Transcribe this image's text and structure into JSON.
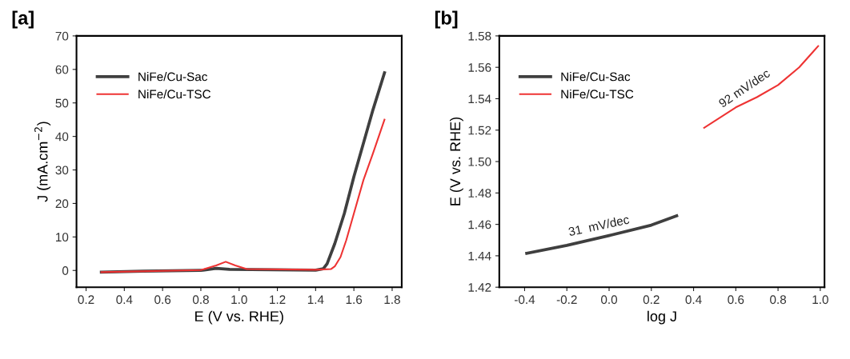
{
  "chart_data": [
    {
      "type": "line",
      "title": "[a]",
      "xlabel": "E (V vs. RHE)",
      "ylabel": "J (mA.cm$^{−2}$)",
      "xlim": [
        0.15,
        1.85
      ],
      "ylim": [
        -5,
        70
      ],
      "xticks": [
        {
          "value": 0.2,
          "label": "0.2"
        },
        {
          "value": 0.4,
          "label": "0.4"
        },
        {
          "value": 0.6,
          "label": "0.6"
        },
        {
          "value": 0.8,
          "label": "0.8"
        },
        {
          "value": 1.0,
          "label": "1.0"
        },
        {
          "value": 1.2,
          "label": "1.2"
        },
        {
          "value": 1.4,
          "label": "1.4"
        },
        {
          "value": 1.6,
          "label": "1.6"
        },
        {
          "value": 1.8,
          "label": "1.8"
        }
      ],
      "yticks": [
        0,
        10,
        20,
        30,
        40,
        50,
        60,
        70
      ],
      "legend": "top left",
      "grid": false,
      "series": [
        {
          "name": "NiFe/Cu-Sac",
          "color": "#3f3f3f",
          "x": [
            0.28,
            0.5,
            0.8,
            0.88,
            0.95,
            1.4,
            1.44,
            1.46,
            1.5,
            1.55,
            1.6,
            1.65,
            1.7,
            1.76
          ],
          "values": [
            -0.5,
            -0.2,
            0,
            0.6,
            0.3,
            0.1,
            0.5,
            2,
            8,
            17,
            28,
            38,
            48,
            59
          ]
        },
        {
          "name": "NiFe/Cu-TSC",
          "color": "#ee3333",
          "x": [
            0.28,
            0.8,
            0.88,
            0.93,
            0.98,
            1.04,
            1.4,
            1.48,
            1.5,
            1.53,
            1.56,
            1.6,
            1.65,
            1.7,
            1.76
          ],
          "values": [
            -0.5,
            0.1,
            1.5,
            2.6,
            1.5,
            0.4,
            0.2,
            0.4,
            1.2,
            4,
            9,
            17,
            27,
            35,
            45
          ]
        }
      ]
    },
    {
      "type": "line",
      "title": "[b]",
      "xlabel": "log J",
      "ylabel": "E (V vs. RHE)",
      "xlim": [
        -0.52,
        1.02
      ],
      "ylim": [
        1.42,
        1.58
      ],
      "xticks": [
        {
          "value": -0.4,
          "label": "-0.4"
        },
        {
          "value": -0.2,
          "label": "-0.2"
        },
        {
          "value": 0.0,
          "label": "0.0"
        },
        {
          "value": 0.2,
          "label": "0.2"
        },
        {
          "value": 0.4,
          "label": "0.4"
        },
        {
          "value": 0.6,
          "label": "0.6"
        },
        {
          "value": 0.8,
          "label": "0.8"
        },
        {
          "value": 1.0,
          "label": "1.0"
        }
      ],
      "yticks": [
        {
          "value": 1.42,
          "label": "1.42"
        },
        {
          "value": 1.44,
          "label": "1.44"
        },
        {
          "value": 1.46,
          "label": "1.46"
        },
        {
          "value": 1.48,
          "label": "1.48"
        },
        {
          "value": 1.5,
          "label": "1.50"
        },
        {
          "value": 1.52,
          "label": "1.52"
        },
        {
          "value": 1.54,
          "label": "1.54"
        },
        {
          "value": 1.56,
          "label": "1.56"
        },
        {
          "value": 1.58,
          "label": "1.58"
        }
      ],
      "legend": "top left",
      "grid": false,
      "annotations": [
        {
          "text": "31  mV/dec",
          "x": 0.0,
          "y": 1.4529
        },
        {
          "text": "92 mV/dec",
          "x": 0.7,
          "y": 1.541
        }
      ],
      "series": [
        {
          "name": "NiFe/Cu-Sac",
          "color": "#3f3f3f",
          "x": [
            -0.39,
            -0.2,
            0.0,
            0.2,
            0.32
          ],
          "values": [
            1.4416,
            1.4466,
            1.4529,
            1.4595,
            1.4655
          ]
        },
        {
          "name": "NiFe/Cu-TSC",
          "color": "#ee3333",
          "x": [
            0.45,
            0.6,
            0.7,
            0.8,
            0.9,
            0.99
          ],
          "values": [
            1.5215,
            1.5345,
            1.541,
            1.5487,
            1.56,
            1.5735
          ]
        }
      ]
    }
  ]
}
